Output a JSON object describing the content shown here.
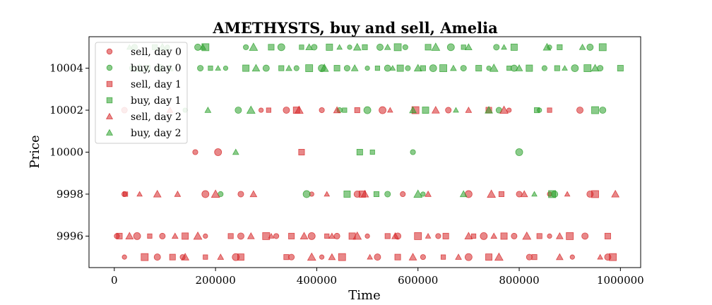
{
  "chart_data": {
    "type": "scatter",
    "title": "AMETHYSTS, buy and sell, Amelia",
    "xlabel": "Time",
    "ylabel": "Price",
    "xlim": [
      -50000,
      1040000
    ],
    "ylim": [
      9994.5,
      10005.5
    ],
    "xticks": [
      0,
      200000,
      400000,
      600000,
      800000,
      1000000
    ],
    "yticks": [
      9996,
      9998,
      10000,
      10002,
      10004
    ],
    "legend_position": "top-left",
    "grid": false,
    "colors": {
      "sell": "#d62728",
      "buy": "#2ca02c"
    },
    "series": [
      {
        "name": "sell, day 0",
        "side": "sell",
        "marker": "circle",
        "points": [
          [
            20000,
            9995
          ],
          [
            85000,
            9995
          ],
          [
            135000,
            9995
          ],
          [
            240000,
            9995
          ],
          [
            350000,
            9995
          ],
          [
            410000,
            9995
          ],
          [
            520000,
            9995
          ],
          [
            610000,
            9995
          ],
          [
            700000,
            9995
          ],
          [
            820000,
            9995
          ],
          [
            905000,
            9995
          ],
          [
            975000,
            9995
          ],
          [
            5000,
            9996
          ],
          [
            45000,
            9996
          ],
          [
            95000,
            9996
          ],
          [
            180000,
            9996
          ],
          [
            250000,
            9996
          ],
          [
            320000,
            9996
          ],
          [
            390000,
            9996
          ],
          [
            440000,
            9996
          ],
          [
            500000,
            9996
          ],
          [
            560000,
            9996
          ],
          [
            640000,
            9996
          ],
          [
            730000,
            9996
          ],
          [
            790000,
            9996
          ],
          [
            860000,
            9996
          ],
          [
            930000,
            9996
          ],
          [
            20000,
            9998
          ],
          [
            180000,
            9998
          ],
          [
            250000,
            9998
          ],
          [
            390000,
            9998
          ],
          [
            480000,
            9998
          ],
          [
            570000,
            9998
          ],
          [
            700000,
            9998
          ],
          [
            800000,
            9998
          ],
          [
            860000,
            9998
          ],
          [
            940000,
            9998
          ],
          [
            160000,
            10000
          ],
          [
            205000,
            10000
          ],
          [
            20000,
            10002
          ],
          [
            290000,
            10002
          ],
          [
            340000,
            10002
          ],
          [
            410000,
            10002
          ],
          [
            530000,
            10002
          ],
          [
            660000,
            10002
          ],
          [
            780000,
            10002
          ],
          [
            920000,
            10002
          ]
        ]
      },
      {
        "name": "buy, day 0",
        "side": "buy",
        "marker": "circle",
        "points": [
          [
            40000,
            10005
          ],
          [
            105000,
            10005
          ],
          [
            165000,
            10005
          ],
          [
            260000,
            10005
          ],
          [
            330000,
            10005
          ],
          [
            395000,
            10005
          ],
          [
            465000,
            10005
          ],
          [
            525000,
            10005
          ],
          [
            575000,
            10005
          ],
          [
            665000,
            10005
          ],
          [
            755000,
            10005
          ],
          [
            860000,
            10005
          ],
          [
            940000,
            10005
          ],
          [
            35000,
            10004
          ],
          [
            90000,
            10004
          ],
          [
            170000,
            10004
          ],
          [
            220000,
            10004
          ],
          [
            300000,
            10004
          ],
          [
            360000,
            10004
          ],
          [
            410000,
            10004
          ],
          [
            460000,
            10004
          ],
          [
            500000,
            10004
          ],
          [
            540000,
            10004
          ],
          [
            580000,
            10004
          ],
          [
            630000,
            10004
          ],
          [
            690000,
            10004
          ],
          [
            740000,
            10004
          ],
          [
            790000,
            10004
          ],
          [
            850000,
            10004
          ],
          [
            910000,
            10004
          ],
          [
            960000,
            10004
          ],
          [
            140000,
            10002
          ],
          [
            245000,
            10002
          ],
          [
            445000,
            10002
          ],
          [
            500000,
            10002
          ],
          [
            760000,
            10002
          ],
          [
            840000,
            10002
          ],
          [
            965000,
            10002
          ],
          [
            210000,
            9998
          ],
          [
            380000,
            9998
          ],
          [
            540000,
            9998
          ],
          [
            610000,
            9998
          ],
          [
            870000,
            9998
          ],
          [
            590000,
            10000
          ],
          [
            800000,
            10000
          ]
        ]
      },
      {
        "name": "sell, day 1",
        "side": "sell",
        "marker": "square",
        "points": [
          [
            60000,
            9995
          ],
          [
            115000,
            9995
          ],
          [
            180000,
            9995
          ],
          [
            250000,
            9995
          ],
          [
            340000,
            9995
          ],
          [
            450000,
            9995
          ],
          [
            560000,
            9995
          ],
          [
            650000,
            9995
          ],
          [
            740000,
            9995
          ],
          [
            830000,
            9995
          ],
          [
            985000,
            9995
          ],
          [
            10000,
            9996
          ],
          [
            70000,
            9996
          ],
          [
            140000,
            9996
          ],
          [
            230000,
            9996
          ],
          [
            300000,
            9996
          ],
          [
            350000,
            9996
          ],
          [
            420000,
            9996
          ],
          [
            470000,
            9996
          ],
          [
            540000,
            9996
          ],
          [
            600000,
            9996
          ],
          [
            655000,
            9996
          ],
          [
            710000,
            9996
          ],
          [
            770000,
            9996
          ],
          [
            840000,
            9996
          ],
          [
            900000,
            9996
          ],
          [
            975000,
            9996
          ],
          [
            22000,
            9998
          ],
          [
            490000,
            9998
          ],
          [
            765000,
            9998
          ],
          [
            950000,
            9998
          ],
          [
            370000,
            10000
          ],
          [
            305000,
            10002
          ],
          [
            360000,
            10002
          ],
          [
            480000,
            10002
          ],
          [
            595000,
            10002
          ],
          [
            740000,
            10002
          ],
          [
            860000,
            10002
          ]
        ]
      },
      {
        "name": "buy, day 1",
        "side": "buy",
        "marker": "square",
        "points": [
          [
            80000,
            10005
          ],
          [
            180000,
            10005
          ],
          [
            310000,
            10005
          ],
          [
            370000,
            10005
          ],
          [
            425000,
            10005
          ],
          [
            495000,
            10005
          ],
          [
            560000,
            10005
          ],
          [
            620000,
            10005
          ],
          [
            690000,
            10005
          ],
          [
            790000,
            10005
          ],
          [
            880000,
            10005
          ],
          [
            965000,
            10005
          ],
          [
            65000,
            10004
          ],
          [
            190000,
            10004
          ],
          [
            260000,
            10004
          ],
          [
            330000,
            10004
          ],
          [
            385000,
            10004
          ],
          [
            440000,
            10004
          ],
          [
            520000,
            10004
          ],
          [
            565000,
            10004
          ],
          [
            610000,
            10004
          ],
          [
            650000,
            10004
          ],
          [
            720000,
            10004
          ],
          [
            780000,
            10004
          ],
          [
            820000,
            10004
          ],
          [
            875000,
            10004
          ],
          [
            935000,
            10004
          ],
          [
            1000000,
            10004
          ],
          [
            455000,
            10002
          ],
          [
            615000,
            10002
          ],
          [
            835000,
            10002
          ],
          [
            950000,
            10002
          ],
          [
            485000,
            10000
          ],
          [
            510000,
            10000
          ],
          [
            460000,
            9998
          ],
          [
            518000,
            9998
          ],
          [
            865000,
            9998
          ]
        ]
      },
      {
        "name": "sell, day 2",
        "side": "sell",
        "marker": "triangle",
        "points": [
          [
            140000,
            9995
          ],
          [
            210000,
            9995
          ],
          [
            390000,
            9995
          ],
          [
            430000,
            9995
          ],
          [
            505000,
            9995
          ],
          [
            590000,
            9995
          ],
          [
            680000,
            9995
          ],
          [
            760000,
            9995
          ],
          [
            880000,
            9995
          ],
          [
            960000,
            9995
          ],
          [
            30000,
            9996
          ],
          [
            120000,
            9996
          ],
          [
            165000,
            9996
          ],
          [
            270000,
            9996
          ],
          [
            310000,
            9996
          ],
          [
            375000,
            9996
          ],
          [
            430000,
            9996
          ],
          [
            480000,
            9996
          ],
          [
            555000,
            9996
          ],
          [
            620000,
            9996
          ],
          [
            700000,
            9996
          ],
          [
            750000,
            9996
          ],
          [
            815000,
            9996
          ],
          [
            880000,
            9996
          ],
          [
            50000,
            9998
          ],
          [
            85000,
            9998
          ],
          [
            125000,
            9998
          ],
          [
            200000,
            9998
          ],
          [
            275000,
            9998
          ],
          [
            420000,
            9998
          ],
          [
            495000,
            9998
          ],
          [
            620000,
            9998
          ],
          [
            745000,
            9998
          ],
          [
            810000,
            9998
          ],
          [
            895000,
            9998
          ],
          [
            990000,
            9998
          ],
          [
            110000,
            10002
          ],
          [
            365000,
            10002
          ],
          [
            440000,
            10002
          ],
          [
            545000,
            10002
          ],
          [
            635000,
            10002
          ],
          [
            700000,
            10002
          ],
          [
            770000,
            10002
          ]
        ]
      },
      {
        "name": "buy, day 2",
        "side": "buy",
        "marker": "triangle",
        "points": [
          [
            30000,
            10005
          ],
          [
            95000,
            10005
          ],
          [
            175000,
            10005
          ],
          [
            275000,
            10005
          ],
          [
            385000,
            10005
          ],
          [
            445000,
            10005
          ],
          [
            480000,
            10005
          ],
          [
            540000,
            10005
          ],
          [
            635000,
            10005
          ],
          [
            700000,
            10005
          ],
          [
            770000,
            10005
          ],
          [
            855000,
            10005
          ],
          [
            925000,
            10005
          ],
          [
            50000,
            10004
          ],
          [
            110000,
            10004
          ],
          [
            205000,
            10004
          ],
          [
            280000,
            10004
          ],
          [
            345000,
            10004
          ],
          [
            415000,
            10004
          ],
          [
            475000,
            10004
          ],
          [
            550000,
            10004
          ],
          [
            600000,
            10004
          ],
          [
            670000,
            10004
          ],
          [
            750000,
            10004
          ],
          [
            800000,
            10004
          ],
          [
            890000,
            10004
          ],
          [
            950000,
            10004
          ],
          [
            185000,
            10002
          ],
          [
            270000,
            10002
          ],
          [
            590000,
            10002
          ],
          [
            675000,
            10002
          ],
          [
            740000,
            10002
          ],
          [
            240000,
            10000
          ],
          [
            600000,
            9998
          ],
          [
            690000,
            9998
          ],
          [
            830000,
            9998
          ]
        ]
      }
    ]
  }
}
